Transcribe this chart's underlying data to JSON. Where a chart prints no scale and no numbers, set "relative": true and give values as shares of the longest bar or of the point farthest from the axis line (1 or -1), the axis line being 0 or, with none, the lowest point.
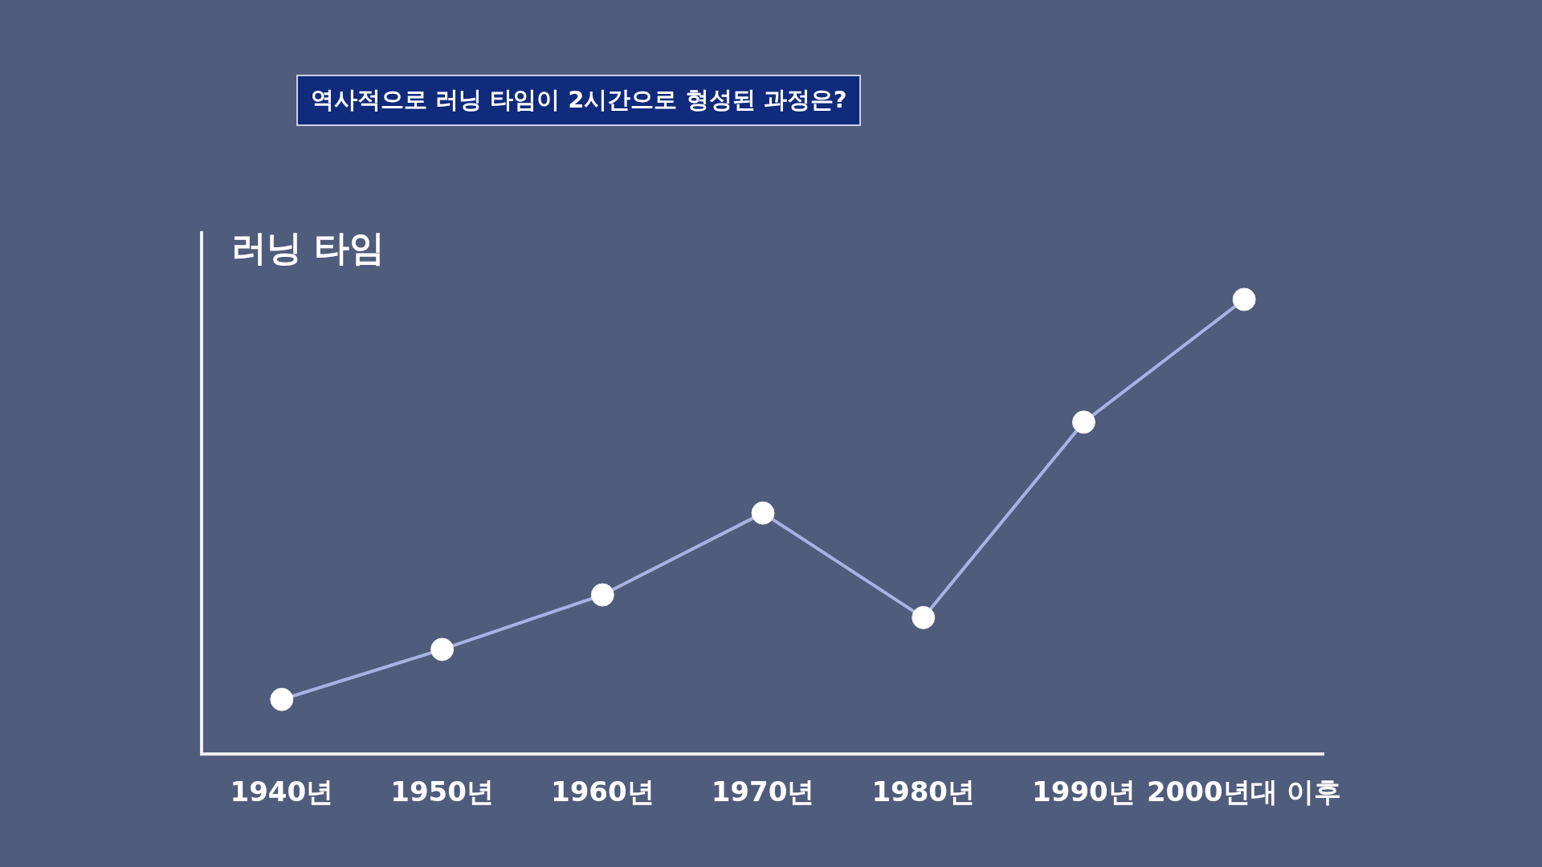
{
  "chart_data": {
    "type": "line",
    "title": "역사적으로 러닝 타임이 2시간으로 형성된 과정은?",
    "ylabel": "러닝 타임",
    "categories": [
      "1940년",
      "1950년",
      "1960년",
      "1970년",
      "1980년",
      "1990년",
      "2000년대 이후"
    ],
    "relative": true,
    "series": [
      {
        "color": "#a7b3e3",
        "values": [
          0.12,
          0.23,
          0.35,
          0.53,
          0.3,
          0.73,
          1
        ]
      }
    ],
    "marker": "circle",
    "line_style": "solid",
    "grid": false,
    "legend": false
  }
}
